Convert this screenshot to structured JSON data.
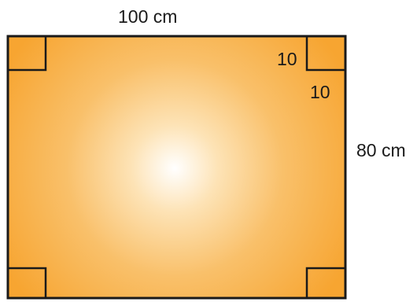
{
  "diagram": {
    "labels": {
      "width": "100 cm",
      "height": "80 cm",
      "cut_horizontal": "10",
      "cut_vertical": "10"
    },
    "colors": {
      "fill_outer": "#f7a531",
      "fill_inner": "#ffffff",
      "stroke": "#1a1a1a"
    }
  }
}
